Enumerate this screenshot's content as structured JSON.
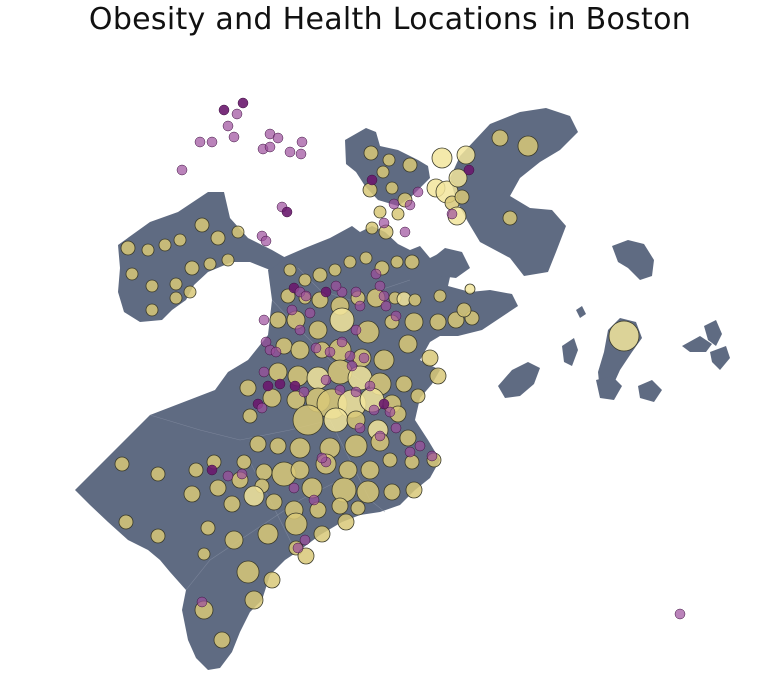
{
  "title": "Obesity and Health Locations in Boston",
  "colors": {
    "land": "#5f6b82",
    "water": "#ffffff",
    "district_lines": "#8d96aa",
    "obesity_fill": "#d8c878",
    "obesity_fill_high": "#f2e59c",
    "obesity_stroke": "#3a3a2a",
    "health_fill": "#9c4f9c",
    "health_fill_dark": "#6a1a6e"
  },
  "layers": {
    "obesity_circles": "obesity-circle",
    "health_locations": "health-location-point"
  }
}
